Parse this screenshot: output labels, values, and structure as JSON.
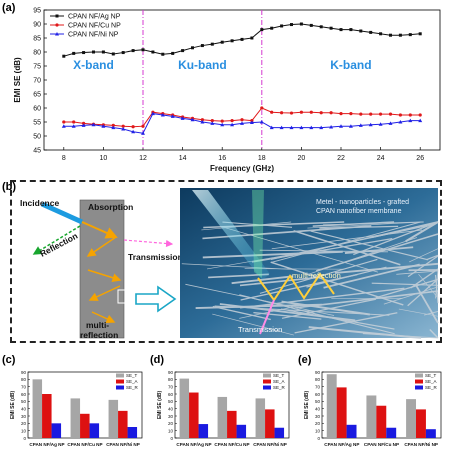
{
  "panel_labels": {
    "a": "(a)",
    "b": "(b)",
    "c": "(c)",
    "d": "(d)",
    "e": "(e)"
  },
  "colors": {
    "ag": "#111111",
    "cu": "#e0191b",
    "ni": "#2121e6",
    "band_divider": "#d63ad0",
    "band_label": "#2a8fe0",
    "bar_total": "#a6a6a6",
    "bar_a": "#dd1111",
    "bar_r": "#1a1ae0"
  },
  "chart_data": [
    {
      "type": "line",
      "xlabel": "Frequency (GHz)",
      "ylabel": "EMI SE (dB)",
      "xlim": [
        7,
        27
      ],
      "ylim": [
        45,
        95
      ],
      "xticks": [
        8,
        10,
        12,
        14,
        16,
        18,
        20,
        22,
        24,
        26
      ],
      "yticks": [
        45,
        50,
        55,
        60,
        65,
        70,
        75,
        80,
        85,
        90,
        95
      ],
      "band_dividers": [
        12,
        18
      ],
      "bands": [
        "X-band",
        "Ku-band",
        "K-band"
      ],
      "legend_position": "top-left",
      "series": [
        {
          "name": "CPAN NF/Ag NP",
          "color": "#111111",
          "marker": "square",
          "x": [
            8,
            8.5,
            9,
            9.5,
            10,
            10.5,
            11,
            11.5,
            12,
            12.5,
            13,
            13.5,
            14,
            14.5,
            15,
            15.5,
            16,
            16.5,
            17,
            17.5,
            18,
            18.5,
            19,
            19.5,
            20,
            20.5,
            21,
            21.5,
            22,
            22.5,
            23,
            23.5,
            24,
            24.5,
            25,
            25.5,
            26
          ],
          "y": [
            78.5,
            79.5,
            79.8,
            80,
            80,
            79.3,
            79.8,
            80.5,
            80.8,
            80,
            79.2,
            79.5,
            80.5,
            81.5,
            82.3,
            82.8,
            83.5,
            84,
            84.5,
            85,
            88,
            88.5,
            89.3,
            89.8,
            90,
            89.5,
            89,
            88.5,
            88,
            88,
            87.5,
            87,
            86.5,
            86,
            86,
            86.2,
            86.5
          ]
        },
        {
          "name": "CPAN NF/Cu NP",
          "color": "#e0191b",
          "marker": "circle",
          "x": [
            8,
            8.5,
            9,
            9.5,
            10,
            10.5,
            11,
            11.5,
            12,
            12.5,
            13,
            13.5,
            14,
            14.5,
            15,
            15.5,
            16,
            16.5,
            17,
            17.5,
            18,
            18.5,
            19,
            19.5,
            20,
            20.5,
            21,
            21.5,
            22,
            22.5,
            23,
            23.5,
            24,
            24.5,
            25,
            25.5,
            26
          ],
          "y": [
            55,
            55,
            54.5,
            54.2,
            54,
            53.8,
            53.5,
            53.3,
            53.5,
            58.5,
            58,
            57.5,
            56.8,
            56.3,
            55.8,
            55.5,
            55.3,
            55.5,
            55.8,
            55.5,
            60,
            58.5,
            58.3,
            58.2,
            58.5,
            58.5,
            58.3,
            58.3,
            58,
            58,
            57.8,
            57.8,
            57.8,
            57.8,
            57.5,
            57.5,
            57.5
          ]
        },
        {
          "name": "CPAN NF/Ni NP",
          "color": "#2121e6",
          "marker": "triangle",
          "x": [
            8,
            8.5,
            9,
            9.5,
            10,
            10.5,
            11,
            11.5,
            12,
            12.5,
            13,
            13.5,
            14,
            14.5,
            15,
            15.5,
            16,
            16.5,
            17,
            17.5,
            18,
            18.5,
            19,
            19.5,
            20,
            20.5,
            21,
            21.5,
            22,
            22.5,
            23,
            23.5,
            24,
            24.5,
            25,
            25.5,
            26
          ],
          "y": [
            53.5,
            53.5,
            53.8,
            54,
            53.5,
            53,
            52.5,
            51.5,
            51,
            58,
            57.5,
            57,
            56.3,
            55.8,
            55,
            54.5,
            54,
            54,
            54.5,
            54.8,
            55,
            53,
            53,
            53,
            53,
            53,
            53,
            53.2,
            53.5,
            53.5,
            53.8,
            54,
            54.2,
            54.5,
            55,
            55.5,
            55.5
          ]
        }
      ]
    },
    {
      "type": "bar",
      "panel": "(c)",
      "ylabel": "EMI SE (dB)",
      "ylim": [
        0,
        90
      ],
      "yticks": [
        0,
        10,
        20,
        30,
        40,
        50,
        60,
        70,
        80,
        90
      ],
      "categories": [
        "CPAN NF/Ag NP",
        "CPAN NF/Cu NP",
        "CPAN NF/Ni NP"
      ],
      "legend_position": "top-right",
      "series": [
        {
          "name": "SE_T",
          "values": [
            80,
            54,
            52
          ]
        },
        {
          "name": "SE_A",
          "values": [
            60,
            33,
            37
          ]
        },
        {
          "name": "SE_R",
          "values": [
            20,
            20,
            15
          ]
        }
      ]
    },
    {
      "type": "bar",
      "panel": "(d)",
      "ylabel": "EMI SE (dB)",
      "ylim": [
        0,
        90
      ],
      "yticks": [
        0,
        10,
        20,
        30,
        40,
        50,
        60,
        70,
        80,
        90
      ],
      "categories": [
        "CPAN NF/Ag NP",
        "CPAN NF/Cu NP",
        "CPAN NF/Ni NP"
      ],
      "legend_position": "top-right",
      "series": [
        {
          "name": "SE_T",
          "values": [
            81,
            56,
            54
          ]
        },
        {
          "name": "SE_A",
          "values": [
            62,
            37,
            39
          ]
        },
        {
          "name": "SE_R",
          "values": [
            19,
            18,
            14
          ]
        }
      ]
    },
    {
      "type": "bar",
      "panel": "(e)",
      "ylabel": "EMI SE (dB)",
      "ylim": [
        0,
        90
      ],
      "yticks": [
        0,
        10,
        20,
        30,
        40,
        50,
        60,
        70,
        80,
        90
      ],
      "categories": [
        "CPAN NF/Ag NP",
        "CPAN NF/Cu NP",
        "CPAN NF/Ni NP"
      ],
      "legend_position": "top-right",
      "series": [
        {
          "name": "SE_T",
          "values": [
            87,
            58,
            53
          ]
        },
        {
          "name": "SE_A",
          "values": [
            69,
            44,
            39
          ]
        },
        {
          "name": "SE_R",
          "values": [
            18,
            14,
            12
          ]
        }
      ]
    }
  ],
  "schematic": {
    "incidence": "Incidence",
    "absorption": "Absorption",
    "reflection": "Reflection",
    "transmission": "Transmission",
    "multi_reflection": "multi-\nreflection",
    "photo_title": "Metel - nanoparticles - grafted\nCPAN nanofiber membrane",
    "photo_multi": "multi-reflection",
    "photo_transmission": "Transmission"
  }
}
